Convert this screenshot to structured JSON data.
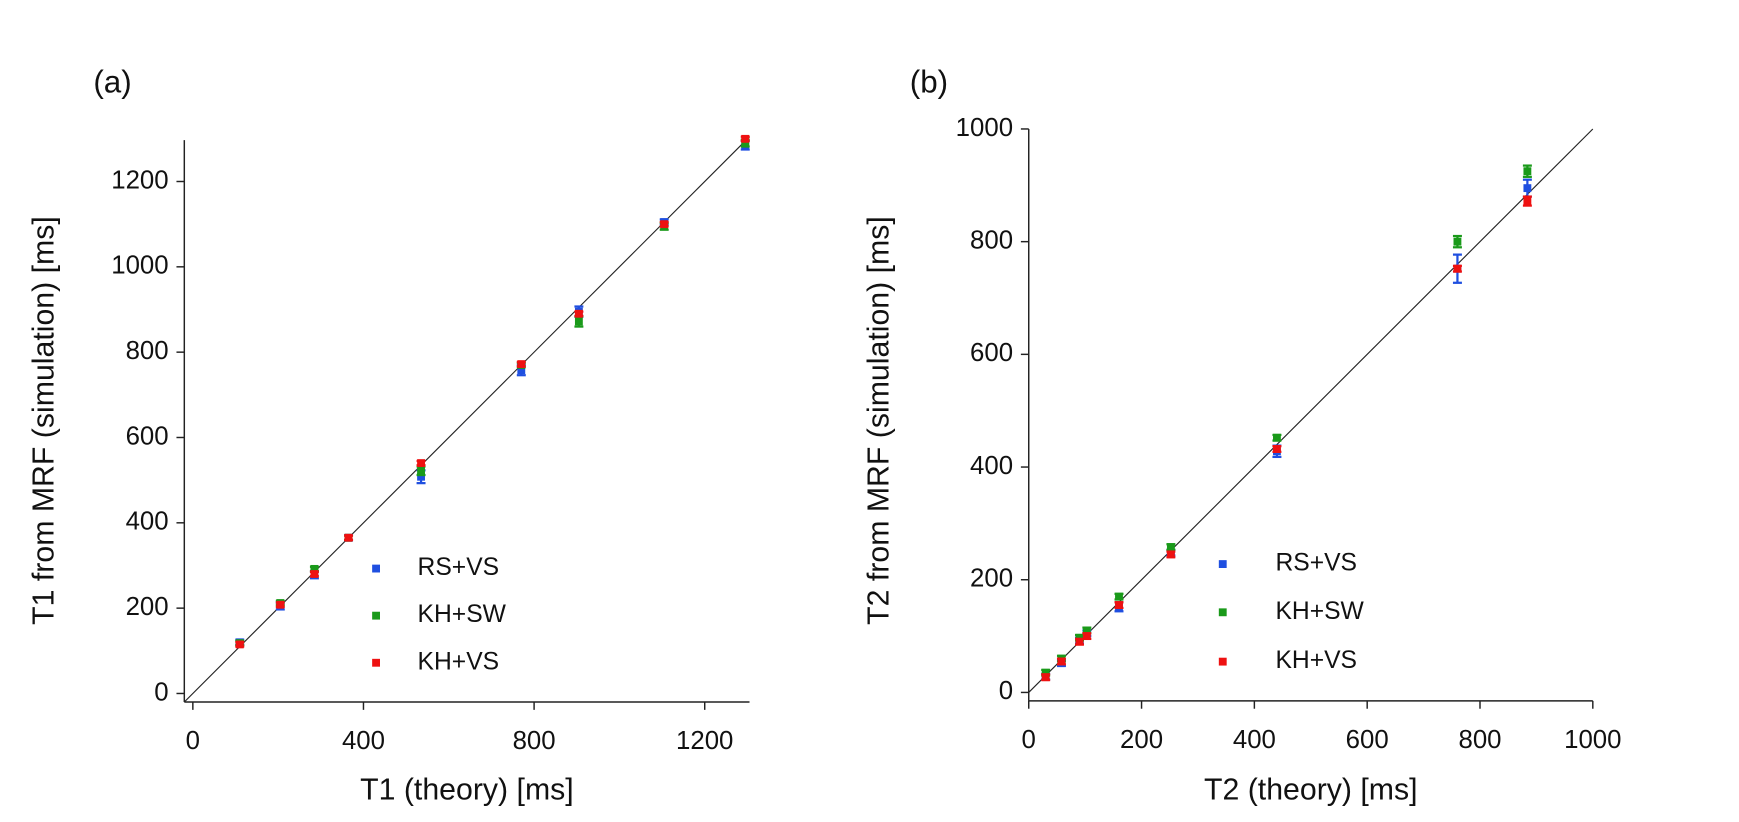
{
  "chart_data": [
    {
      "type": "scatter",
      "panel_label": "(a)",
      "x_label": "T1 (theory) [ms]",
      "y_label": "T1 from MRF (simulation) [ms]",
      "x": [
        110,
        205,
        285,
        365,
        535,
        770,
        905,
        1105,
        1295
      ],
      "series": [
        {
          "name": "RS+VS",
          "color": "#1f4fe0",
          "values": [
            120,
            205,
            278,
            365,
            508,
            758,
            895,
            1105,
            1285
          ],
          "errors": [
            6,
            8,
            8,
            6,
            15,
            12,
            12,
            6,
            10
          ]
        },
        {
          "name": "KH+SW",
          "color": "#1a9a1a",
          "values": [
            118,
            212,
            292,
            365,
            522,
            770,
            872,
            1095,
            1290
          ],
          "errors": [
            5,
            5,
            5,
            5,
            10,
            5,
            12,
            8,
            8
          ]
        },
        {
          "name": "KH+VS",
          "color": "#ee1111",
          "values": [
            115,
            208,
            280,
            365,
            540,
            772,
            890,
            1100,
            1300
          ],
          "errors": [
            5,
            5,
            5,
            5,
            5,
            5,
            5,
            5,
            5
          ]
        }
      ],
      "xlim": [
        -20,
        1305
      ],
      "ylim": [
        -20,
        1310
      ],
      "xticks": [
        0,
        400,
        800,
        1200
      ],
      "yticks": [
        0,
        200,
        400,
        600,
        800,
        1000,
        1200
      ]
    },
    {
      "type": "scatter",
      "panel_label": "(b)",
      "x_label": "T2 (theory) [ms]",
      "y_label": "T2 from MRF (simulation) [ms]",
      "x": [
        30,
        58,
        90,
        103,
        160,
        252,
        440,
        760,
        884
      ],
      "series": [
        {
          "name": "RS+VS",
          "color": "#1f4fe0",
          "values": [
            28,
            52,
            92,
            105,
            152,
            248,
            428,
            752,
            895
          ],
          "errors": [
            5,
            5,
            5,
            5,
            8,
            5,
            10,
            25,
            15
          ]
        },
        {
          "name": "KH+SW",
          "color": "#1a9a1a",
          "values": [
            35,
            60,
            97,
            110,
            170,
            258,
            452,
            800,
            925
          ],
          "errors": [
            5,
            5,
            5,
            5,
            5,
            5,
            5,
            10,
            10
          ]
        },
        {
          "name": "KH+VS",
          "color": "#ee1111",
          "values": [
            27,
            55,
            90,
            100,
            155,
            245,
            432,
            752,
            872
          ],
          "errors": [
            5,
            5,
            5,
            5,
            5,
            5,
            5,
            5,
            8
          ]
        }
      ],
      "xlim": [
        0,
        1000
      ],
      "ylim": [
        -15,
        1000
      ],
      "xticks": [
        0,
        200,
        400,
        600,
        800,
        1000
      ],
      "yticks": [
        0,
        200,
        400,
        600,
        800,
        1000
      ]
    }
  ]
}
